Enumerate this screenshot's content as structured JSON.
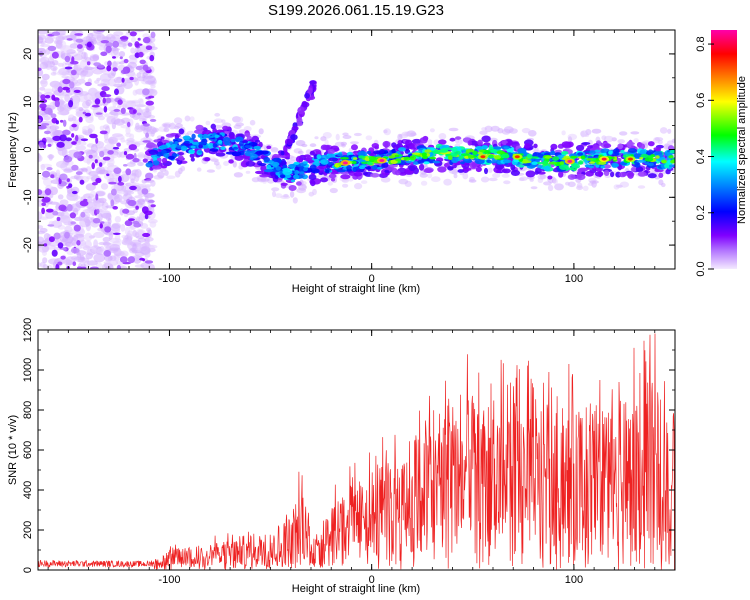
{
  "title": "S199.2026.061.15.19.G23",
  "chart_data": [
    {
      "type": "heatmap",
      "xlabel": "Height of straight line (km)",
      "ylabel": "Frequency (Hz)",
      "xlim": [
        -165,
        150
      ],
      "ylim": [
        -25,
        25
      ],
      "x_ticks": [
        -100,
        0,
        100
      ],
      "y_ticks": [
        -20,
        -10,
        0,
        10,
        20
      ],
      "colorbar": {
        "label": "Normalized spectral amplitude",
        "range": [
          0.0,
          0.85
        ],
        "ticks": [
          "0.0",
          "0.2",
          "0.4",
          "0.6",
          "0.8"
        ],
        "colors": [
          "#f0e0ff",
          "#8a00ff",
          "#0000ff",
          "#00ffff",
          "#00ff00",
          "#ffff00",
          "#ff8000",
          "#ff0000",
          "#ff00aa"
        ]
      },
      "ridge": {
        "noise_region_x": [
          -165,
          -108
        ],
        "band_x": [
          -110,
          150
        ],
        "band_center_hz": [
          {
            "x": -110,
            "f": -1.5
          },
          {
            "x": -90,
            "f": 1
          },
          {
            "x": -75,
            "f": 1.5
          },
          {
            "x": -60,
            "f": 0
          },
          {
            "x": -50,
            "f": -3
          },
          {
            "x": -40,
            "f": -5
          },
          {
            "x": -25,
            "f": -3
          },
          {
            "x": -10,
            "f": -2.5
          },
          {
            "x": 10,
            "f": -2
          },
          {
            "x": 30,
            "f": -1
          },
          {
            "x": 60,
            "f": -1
          },
          {
            "x": 90,
            "f": -2.5
          },
          {
            "x": 120,
            "f": -2
          },
          {
            "x": 150,
            "f": -2
          }
        ],
        "streak": [
          {
            "x": -48,
            "f": -6
          },
          {
            "x": -28,
            "f": 14
          }
        ],
        "peak_spots": [
          {
            "x": -13,
            "f": -2.8,
            "amp": 0.85
          },
          {
            "x": 5,
            "f": -2.3,
            "amp": 0.85
          },
          {
            "x": 55,
            "f": -1.5,
            "amp": 0.75
          },
          {
            "x": 72,
            "f": -1.5,
            "amp": 0.75
          },
          {
            "x": 98,
            "f": -2.5,
            "amp": 0.85
          },
          {
            "x": 115,
            "f": -2.0,
            "amp": 0.8
          },
          {
            "x": 128,
            "f": -2.0,
            "amp": 0.75
          }
        ]
      }
    },
    {
      "type": "line",
      "xlabel": "Height of straight line (km)",
      "ylabel": "SNR (10 * v/v)",
      "xlim": [
        -165,
        150
      ],
      "ylim": [
        0,
        1200
      ],
      "x_ticks": [
        -100,
        0,
        100
      ],
      "y_ticks": [
        0,
        200,
        400,
        600,
        800,
        1000,
        1200
      ],
      "color": "#ee2222",
      "envelope": [
        {
          "x": -165,
          "base": 30,
          "peak": 50
        },
        {
          "x": -110,
          "base": 30,
          "peak": 45
        },
        {
          "x": -100,
          "base": 50,
          "peak": 120
        },
        {
          "x": -70,
          "base": 70,
          "peak": 190
        },
        {
          "x": -45,
          "base": 100,
          "peak": 250
        },
        {
          "x": -35,
          "base": 150,
          "peak": 530
        },
        {
          "x": -28,
          "base": 100,
          "peak": 220
        },
        {
          "x": -15,
          "base": 250,
          "peak": 500
        },
        {
          "x": 0,
          "base": 250,
          "peak": 600
        },
        {
          "x": 20,
          "base": 350,
          "peak": 850
        },
        {
          "x": 40,
          "base": 450,
          "peak": 1100
        },
        {
          "x": 70,
          "base": 450,
          "peak": 1050
        },
        {
          "x": 100,
          "base": 400,
          "peak": 1050
        },
        {
          "x": 120,
          "base": 350,
          "peak": 1000
        },
        {
          "x": 135,
          "base": 400,
          "peak": 1200
        },
        {
          "x": 150,
          "base": 300,
          "peak": 1150
        }
      ]
    }
  ]
}
